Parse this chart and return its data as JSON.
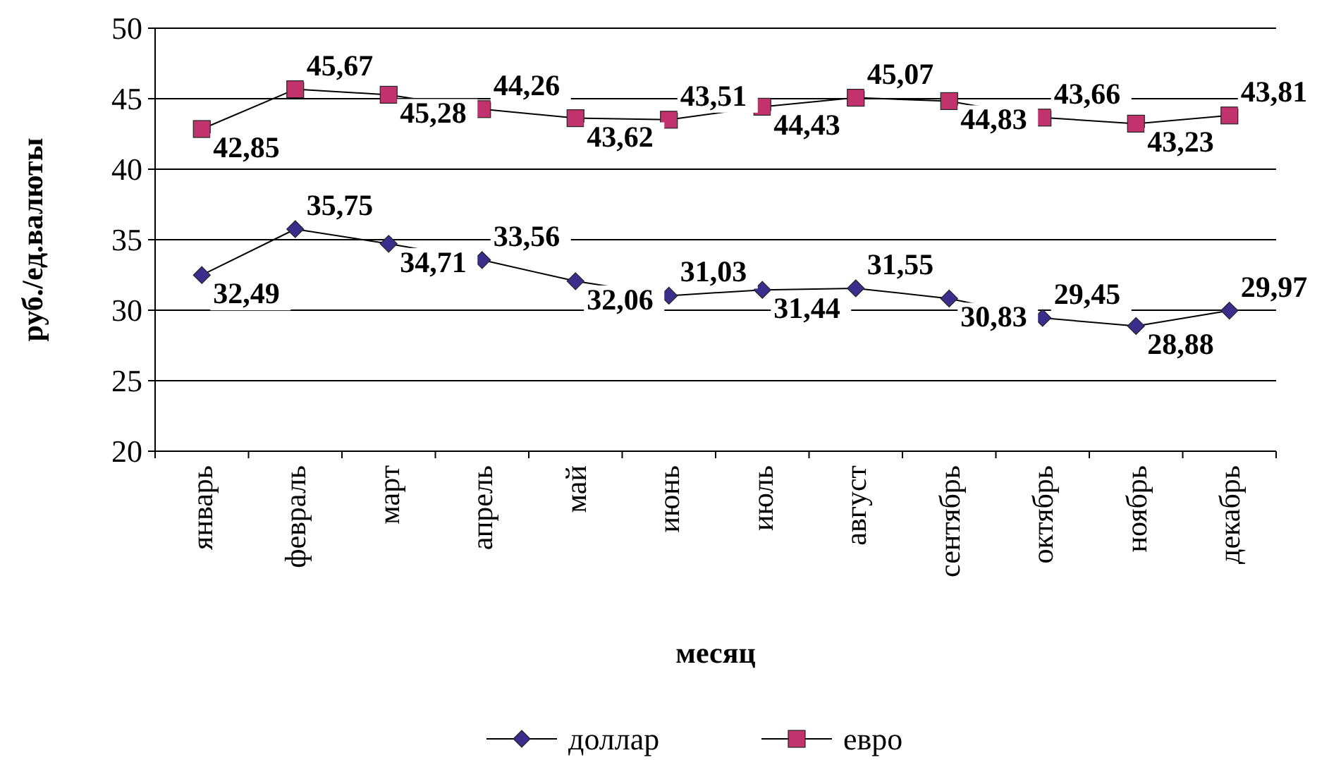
{
  "chart_data": {
    "type": "line",
    "xlabel": "месяц",
    "ylabel": "руб./ед.валюты",
    "categories": [
      "январь",
      "февраль",
      "март",
      "апрель",
      "май",
      "июнь",
      "июль",
      "август",
      "сентябрь",
      "октябрь",
      "ноябрь",
      "декабрь"
    ],
    "series": [
      {
        "name": "доллар",
        "color": "#3a2d8c",
        "marker": "diamond",
        "values": [
          32.49,
          35.75,
          34.71,
          33.56,
          32.06,
          31.03,
          31.44,
          31.55,
          30.83,
          29.45,
          28.88,
          29.97
        ],
        "value_labels": [
          "32,49",
          "35,75",
          "34,71",
          "33,56",
          "32,06",
          "31,03",
          "31,44",
          "31,55",
          "30,83",
          "29,45",
          "28,88",
          "29,97"
        ]
      },
      {
        "name": "евро",
        "color": "#c2336e",
        "marker": "square",
        "values": [
          42.85,
          45.67,
          45.28,
          44.26,
          43.62,
          43.51,
          44.43,
          45.07,
          44.83,
          43.66,
          43.23,
          43.81
        ],
        "value_labels": [
          "42,85",
          "45,67",
          "45,28",
          "44,26",
          "43,62",
          "43,51",
          "44,43",
          "45,07",
          "44,83",
          "43,66",
          "43,23",
          "43,81"
        ]
      }
    ],
    "ylim": [
      20,
      50
    ],
    "yticks": [
      20,
      25,
      30,
      35,
      40,
      45,
      50
    ],
    "grid": "y",
    "legend": "bottom"
  }
}
